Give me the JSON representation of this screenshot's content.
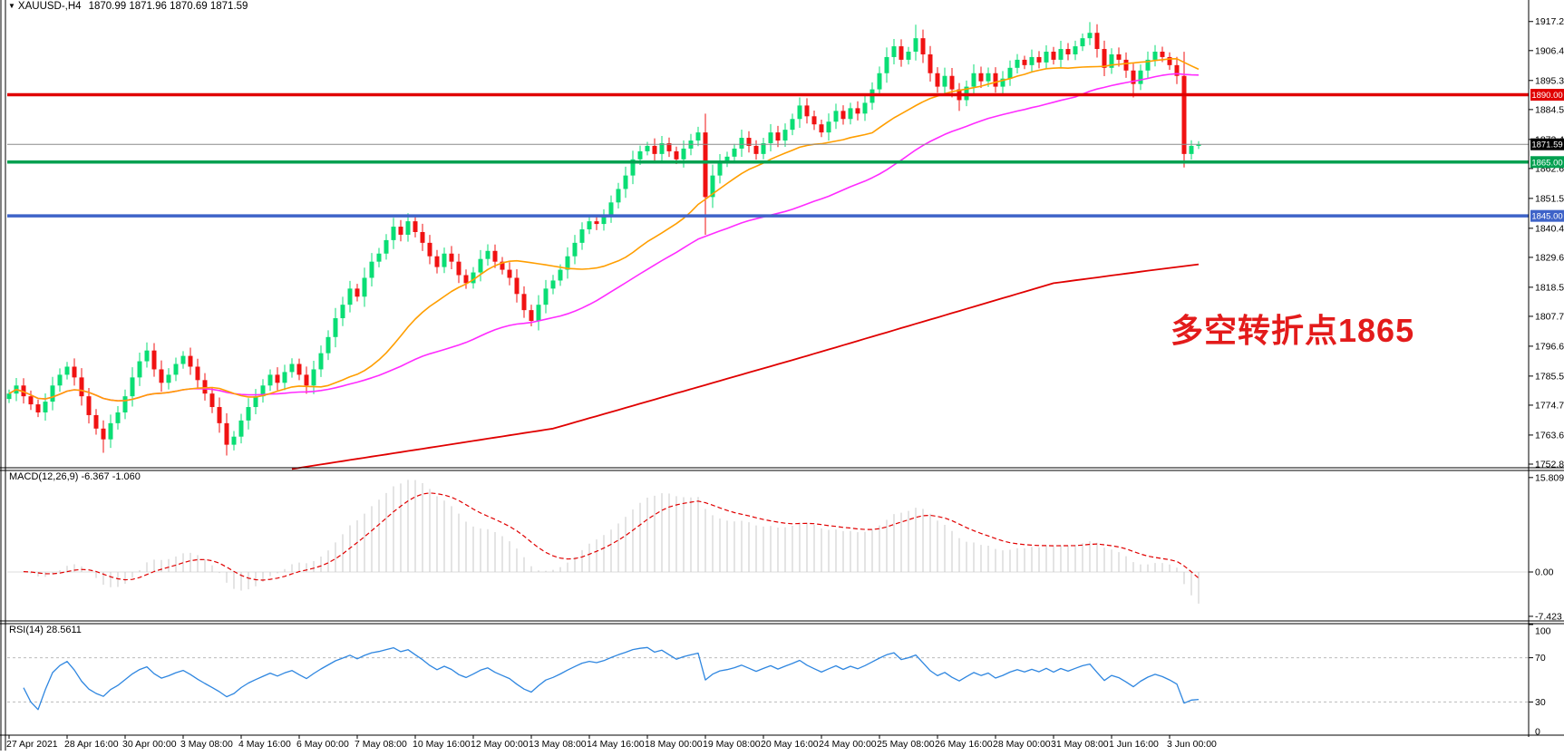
{
  "title": {
    "dropdown_glyph": "▼",
    "symbol": "XAUUSD-,H4",
    "quotes": "1870.99 1871.96 1870.69 1871.59"
  },
  "annotation": {
    "text": "多空转折点1865",
    "color": "#E31B1B"
  },
  "panels": {
    "macd": {
      "label": "MACD(12,26,9) -6.367 -1.060",
      "axis_ticks": [
        {
          "v": 15.809,
          "label": "15.809"
        },
        {
          "v": 0,
          "label": "0.00"
        },
        {
          "v": -7.423,
          "label": "-7.423"
        }
      ]
    },
    "rsi": {
      "label": "RSI(14) 28.5611",
      "axis_ticks": [
        {
          "v": 100,
          "label": "100"
        },
        {
          "v": 70,
          "label": "70"
        },
        {
          "v": 30,
          "label": "30"
        },
        {
          "v": 0,
          "label": "0"
        }
      ],
      "level_lines": [
        70,
        30
      ]
    }
  },
  "price_axis": {
    "ticks": [
      "1917.20",
      "1906.40",
      "1895.30",
      "1884.50",
      "1873.40",
      "1862.60",
      "1851.50",
      "1840.40",
      "1829.60",
      "1818.50",
      "1807.70",
      "1796.60",
      "1785.50",
      "1774.70",
      "1763.60",
      "1752.80"
    ]
  },
  "time_axis": {
    "ticks": [
      "27 Apr 2021",
      "28 Apr 16:00",
      "30 Apr 00:00",
      "3 May 08:00",
      "4 May 16:00",
      "6 May 00:00",
      "7 May 08:00",
      "10 May 16:00",
      "12 May 00:00",
      "13 May 08:00",
      "14 May 16:00",
      "18 May 00:00",
      "19 May 08:00",
      "20 May 16:00",
      "24 May 00:00",
      "25 May 08:00",
      "26 May 16:00",
      "28 May 00:00",
      "31 May 08:00",
      "1 Jun 16:00",
      "3 Jun 00:00"
    ]
  },
  "hlines": [
    {
      "price": 1890.0,
      "label": "1890.00",
      "color": "#E00000"
    },
    {
      "price": 1865.0,
      "label": "1865.00",
      "color": "#00A050"
    },
    {
      "price": 1845.0,
      "label": "1845.00",
      "color": "#3E63C8"
    }
  ],
  "current_price": {
    "price": 1871.59,
    "label": "1871.59",
    "line_color": "#8C8C8C",
    "badge_color": "#000000"
  },
  "colors": {
    "bull": "#0ADE74",
    "bear": "#F01212",
    "ma_fast": "#FF9E00",
    "ma_mid": "#FF2BFF",
    "ma_slow": "#E00000",
    "macd_hist": "#C8C8C8",
    "macd_signal": "#E00000",
    "rsi_line": "#2E86E0",
    "grid_dash": "#BBBBBB",
    "axis": "#000000"
  },
  "chart_data": {
    "type": "candlestick",
    "symbol": "XAUUSD",
    "timeframe": "H4",
    "title": "XAUUSD-,H4",
    "last_bar_ohlc": {
      "open": 1870.99,
      "high": 1871.96,
      "low": 1870.69,
      "close": 1871.59
    },
    "price_range": {
      "top": 1922.5,
      "bottom": 1752.8
    },
    "bars_per_tick": 8,
    "closes": [
      1779,
      1782,
      1778,
      1775,
      1772,
      1776,
      1782,
      1786,
      1789,
      1785,
      1778,
      1771,
      1766,
      1762,
      1768,
      1772,
      1778,
      1785,
      1791,
      1795,
      1788,
      1783,
      1786,
      1790,
      1793,
      1789,
      1784,
      1779,
      1774,
      1768,
      1760,
      1763,
      1769,
      1774,
      1778,
      1782,
      1786,
      1783,
      1787,
      1790,
      1786,
      1782,
      1788,
      1794,
      1800,
      1807,
      1812,
      1818,
      1815,
      1822,
      1828,
      1831,
      1836,
      1841,
      1838,
      1843,
      1839,
      1835,
      1830,
      1826,
      1831,
      1828,
      1823,
      1820,
      1824,
      1829,
      1832,
      1828,
      1825,
      1822,
      1816,
      1810,
      1806,
      1812,
      1818,
      1821,
      1825,
      1830,
      1835,
      1840,
      1843,
      1842,
      1845,
      1850,
      1855,
      1860,
      1866,
      1869,
      1871,
      1868,
      1872,
      1869,
      1866,
      1870,
      1873,
      1876,
      1852,
      1860,
      1865,
      1867,
      1870,
      1874,
      1871,
      1868,
      1872,
      1876,
      1873,
      1877,
      1881,
      1886,
      1882,
      1879,
      1876,
      1880,
      1884,
      1881,
      1885,
      1883,
      1887,
      1892,
      1898,
      1904,
      1908,
      1903,
      1906,
      1911,
      1905,
      1898,
      1893,
      1897,
      1892,
      1888,
      1893,
      1898,
      1895,
      1898,
      1893,
      1896,
      1900,
      1903,
      1901,
      1904,
      1902,
      1906,
      1903,
      1907,
      1905,
      1908,
      1911,
      1913,
      1907,
      1900,
      1905,
      1903,
      1899,
      1894,
      1899,
      1903,
      1906,
      1904,
      1901,
      1897,
      1868,
      1871,
      1871.59
    ],
    "wick_overrides": {
      "13": {
        "low": 1757
      },
      "19": {
        "high": 1798
      },
      "30": {
        "low": 1756
      },
      "55": {
        "high": 1846
      },
      "72": {
        "low": 1804
      },
      "96": {
        "low": 1838
      },
      "109": {
        "high": 1889
      },
      "125": {
        "high": 1916
      },
      "131": {
        "low": 1884
      },
      "149": {
        "high": 1917
      },
      "155": {
        "low": 1889
      },
      "162": {
        "low": 1863
      }
    },
    "ma_fast_period": 24,
    "ma_mid_period": 52,
    "ma_slow_keypoints": [
      [
        39,
        1751
      ],
      [
        75,
        1766
      ],
      [
        110,
        1793
      ],
      [
        144,
        1820
      ],
      [
        158,
        1825
      ],
      [
        164,
        1827
      ]
    ],
    "macd": {
      "params": [
        12,
        26,
        9
      ],
      "main_last": -6.367,
      "signal_last": -1.06,
      "axis_range": [
        -7.423,
        15.809
      ]
    },
    "rsi": {
      "period": 14,
      "last": 28.5611,
      "axis_range": [
        0,
        100
      ]
    }
  }
}
